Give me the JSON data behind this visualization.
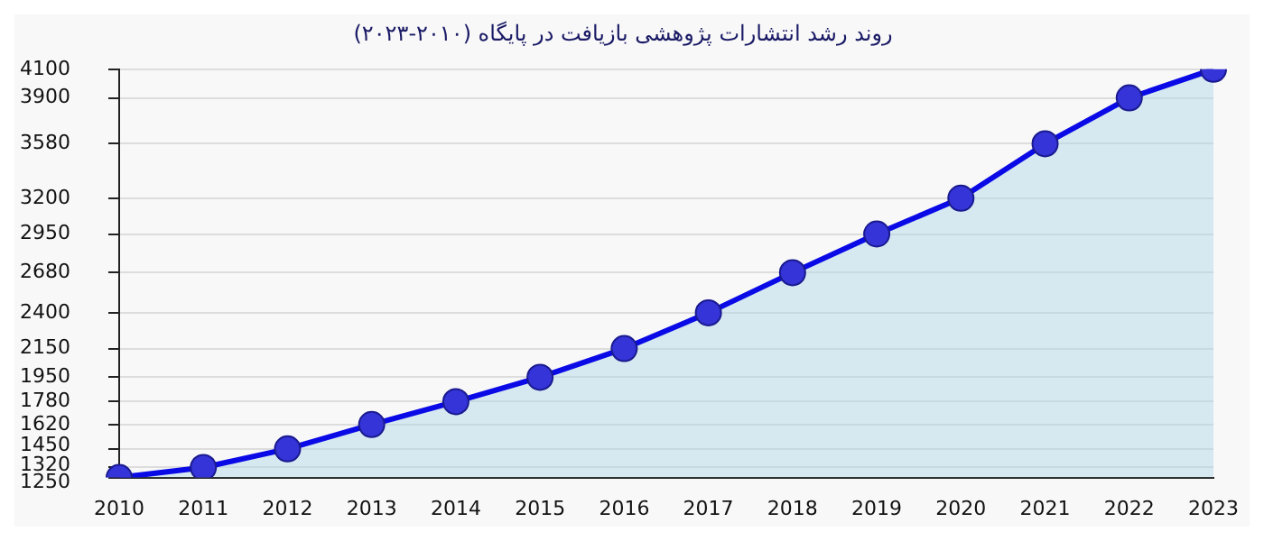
{
  "chart_data": {
    "type": "area",
    "title": "روند رشد انتشارات پژوهشی بازیافت در پایگاه (۲۰۱۰-۲۰۲۳)",
    "categories": [
      "2010",
      "2011",
      "2012",
      "2013",
      "2014",
      "2015",
      "2016",
      "2017",
      "2018",
      "2019",
      "2020",
      "2021",
      "2022",
      "2023"
    ],
    "series": [
      {
        "color": "#0a0ae6",
        "values": [
          1250,
          1320,
          1450,
          1620,
          1780,
          1950,
          2150,
          2400,
          2680,
          2950,
          3200,
          3580,
          3900,
          4100
        ]
      }
    ],
    "ylim": [
      1250,
      4100
    ],
    "yticks": [
      1250,
      1320,
      1450,
      1620,
      1780,
      1950,
      2150,
      2400,
      2680,
      2950,
      3200,
      3580,
      3900,
      4100
    ],
    "grid": "y",
    "legend": false,
    "marker": "circle",
    "line_style": "solid"
  }
}
